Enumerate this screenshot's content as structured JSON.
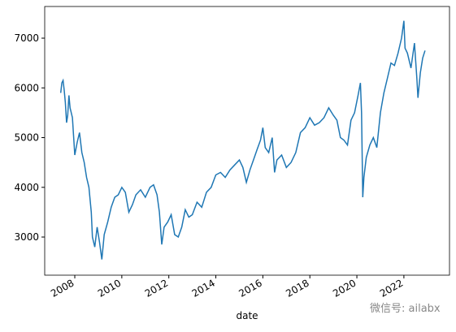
{
  "chart_data": {
    "type": "line",
    "xlabel": "date",
    "watermark": "微信号: ailabx",
    "series": [
      {
        "color": "#1f77b4",
        "x": [
          2007.4,
          2007.45,
          2007.5,
          2007.55,
          2007.6,
          2007.65,
          2007.7,
          2007.75,
          2007.8,
          2007.9,
          2008.0,
          2008.1,
          2008.2,
          2008.3,
          2008.4,
          2008.5,
          2008.6,
          2008.7,
          2008.75,
          2008.85,
          2008.95,
          2009.05,
          2009.15,
          2009.25,
          2009.4,
          2009.55,
          2009.7,
          2009.85,
          2010.0,
          2010.15,
          2010.3,
          2010.45,
          2010.6,
          2010.8,
          2011.0,
          2011.2,
          2011.35,
          2011.5,
          2011.6,
          2011.7,
          2011.8,
          2011.95,
          2012.1,
          2012.25,
          2012.4,
          2012.55,
          2012.7,
          2012.85,
          2013.0,
          2013.2,
          2013.4,
          2013.6,
          2013.8,
          2014.0,
          2014.2,
          2014.4,
          2014.6,
          2014.8,
          2015.0,
          2015.15,
          2015.3,
          2015.45,
          2015.6,
          2015.75,
          2015.9,
          2016.0,
          2016.1,
          2016.25,
          2016.4,
          2016.5,
          2016.6,
          2016.8,
          2017.0,
          2017.2,
          2017.4,
          2017.6,
          2017.8,
          2018.0,
          2018.2,
          2018.4,
          2018.6,
          2018.8,
          2019.0,
          2019.15,
          2019.3,
          2019.45,
          2019.6,
          2019.75,
          2019.9,
          2020.05,
          2020.15,
          2020.2,
          2020.25,
          2020.3,
          2020.4,
          2020.55,
          2020.7,
          2020.85,
          2021.0,
          2021.15,
          2021.3,
          2021.45,
          2021.6,
          2021.75,
          2021.9,
          2022.0,
          2022.05,
          2022.15,
          2022.3,
          2022.45,
          2022.55,
          2022.6,
          2022.7,
          2022.8,
          2022.9
        ],
        "values": [
          5900,
          6100,
          6150,
          5950,
          5700,
          5300,
          5450,
          5850,
          5600,
          5400,
          4650,
          4900,
          5100,
          4700,
          4500,
          4200,
          4000,
          3500,
          3000,
          2800,
          3200,
          2900,
          2550,
          3050,
          3300,
          3600,
          3800,
          3850,
          4000,
          3900,
          3500,
          3650,
          3850,
          3950,
          3800,
          4000,
          4050,
          3850,
          3500,
          2850,
          3200,
          3300,
          3450,
          3050,
          3000,
          3200,
          3550,
          3400,
          3450,
          3700,
          3600,
          3900,
          4000,
          4250,
          4300,
          4200,
          4350,
          4450,
          4550,
          4400,
          4100,
          4350,
          4550,
          4750,
          4950,
          5200,
          4800,
          4700,
          5000,
          4300,
          4550,
          4650,
          4400,
          4500,
          4700,
          5100,
          5200,
          5400,
          5250,
          5300,
          5400,
          5600,
          5450,
          5350,
          5000,
          4950,
          4850,
          5350,
          5500,
          5850,
          6100,
          5500,
          3800,
          4200,
          4600,
          4850,
          5000,
          4800,
          5500,
          5900,
          6200,
          6500,
          6450,
          6700,
          7000,
          7350,
          6800,
          6700,
          6400,
          6900,
          6200,
          5800,
          6300,
          6600,
          6750
        ]
      }
    ],
    "xlim": [
      2006.72,
      2023.94
    ],
    "xticks": [
      2008,
      2010,
      2012,
      2014,
      2016,
      2018,
      2020,
      2022
    ],
    "ylim": [
      2233,
      7637
    ],
    "yticks": [
      3000,
      4000,
      5000,
      6000,
      7000
    ]
  }
}
